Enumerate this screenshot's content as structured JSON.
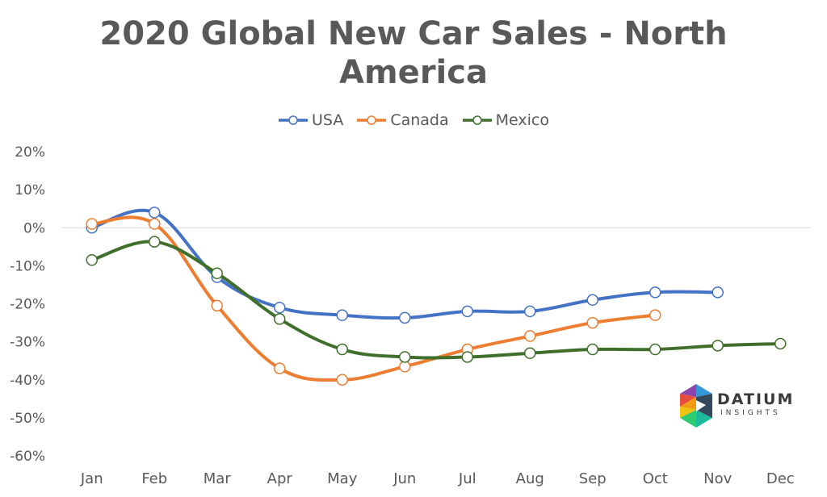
{
  "chart_data": {
    "type": "line",
    "title": "2020 Global New Car Sales - North America",
    "title_lines": [
      "2020 Global New Car Sales - North",
      "America"
    ],
    "categories": [
      "Jan",
      "Feb",
      "Mar",
      "Apr",
      "May",
      "Jun",
      "Jul",
      "Aug",
      "Sep",
      "Oct",
      "Nov",
      "Dec"
    ],
    "y_ticks": [
      "20%",
      "10%",
      "0%",
      "-10%",
      "-20%",
      "-30%",
      "-40%",
      "-50%",
      "-60%"
    ],
    "ylim": [
      -60,
      20
    ],
    "y_unit": "%",
    "legend_position": "top",
    "smooth": true,
    "marker": "hollow-circle",
    "series": [
      {
        "name": "USA",
        "color": "#4472C4",
        "values": [
          0,
          4,
          -13,
          -21,
          -23,
          -23.7,
          -22,
          -22,
          -19,
          -17,
          -17,
          null
        ]
      },
      {
        "name": "Canada",
        "color": "#ED7D31",
        "values": [
          1,
          1,
          -20.5,
          -37,
          -40,
          -36.5,
          -32,
          -28.5,
          -25,
          -23,
          null,
          null
        ]
      },
      {
        "name": "Mexico",
        "color": "#3F6F2A",
        "values": [
          -8.5,
          -3.7,
          -12,
          -24,
          -32,
          -34,
          -34,
          -33,
          -32,
          -32,
          -31,
          -30.5
        ]
      }
    ]
  },
  "logo": {
    "word": "DATIUM",
    "sub": "INSIGHTS",
    "colors": [
      "#E74C3C",
      "#F39C12",
      "#F1C40F",
      "#2ECC71",
      "#3498DB",
      "#8E44AD",
      "#1ABC9C",
      "#34495E"
    ]
  }
}
